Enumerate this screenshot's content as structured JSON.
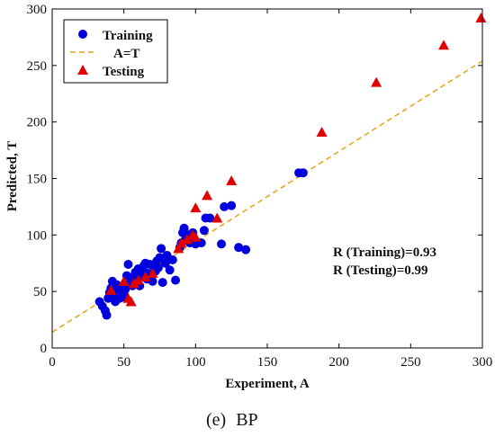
{
  "caption": {
    "letter": "(e)",
    "text": "BP"
  },
  "chart_data": {
    "type": "scatter",
    "title": "",
    "xlabel": "Experiment, A",
    "ylabel": "Predicted, T",
    "xlim": [
      0,
      300
    ],
    "ylim": [
      0,
      300
    ],
    "xticks": [
      0,
      50,
      100,
      150,
      200,
      250,
      300
    ],
    "yticks": [
      0,
      50,
      100,
      150,
      200,
      250,
      300
    ],
    "grid": false,
    "legend_position": "top-left",
    "colors": {
      "training": "#0000dd",
      "fit": "#e8a317",
      "testing": "#e00000"
    },
    "legend": [
      {
        "key": "training",
        "label": "Training",
        "marker": "circle"
      },
      {
        "key": "fit",
        "label": "A=T",
        "marker": "dashed-line"
      },
      {
        "key": "testing",
        "label": "Testing",
        "marker": "triangle"
      }
    ],
    "fit_line": {
      "x": [
        0,
        300
      ],
      "y": [
        14,
        254
      ]
    },
    "series": [
      {
        "key": "training",
        "name": "Training",
        "points": [
          [
            33,
            41
          ],
          [
            35,
            37
          ],
          [
            37,
            33
          ],
          [
            38,
            29
          ],
          [
            39,
            44
          ],
          [
            40,
            49
          ],
          [
            41,
            53
          ],
          [
            42,
            59
          ],
          [
            43,
            46
          ],
          [
            44,
            41
          ],
          [
            45,
            56
          ],
          [
            46,
            50
          ],
          [
            47,
            44
          ],
          [
            48,
            52
          ],
          [
            49,
            45
          ],
          [
            50,
            48
          ],
          [
            51,
            52
          ],
          [
            52,
            64
          ],
          [
            53,
            74
          ],
          [
            54,
            57
          ],
          [
            55,
            61
          ],
          [
            56,
            55
          ],
          [
            57,
            63
          ],
          [
            58,
            67
          ],
          [
            59,
            60
          ],
          [
            60,
            70
          ],
          [
            61,
            55
          ],
          [
            62,
            64
          ],
          [
            63,
            69
          ],
          [
            64,
            73
          ],
          [
            65,
            75
          ],
          [
            66,
            61
          ],
          [
            67,
            66
          ],
          [
            68,
            74
          ],
          [
            70,
            59
          ],
          [
            71,
            72
          ],
          [
            72,
            68
          ],
          [
            73,
            77
          ],
          [
            74,
            71
          ],
          [
            75,
            80
          ],
          [
            76,
            88
          ],
          [
            77,
            58
          ],
          [
            79,
            75
          ],
          [
            80,
            82
          ],
          [
            82,
            69
          ],
          [
            84,
            78
          ],
          [
            86,
            60
          ],
          [
            89,
            89
          ],
          [
            90,
            93
          ],
          [
            91,
            102
          ],
          [
            92,
            106
          ],
          [
            93,
            96
          ],
          [
            95,
            100
          ],
          [
            96,
            93
          ],
          [
            98,
            102
          ],
          [
            100,
            92
          ],
          [
            104,
            93
          ],
          [
            106,
            104
          ],
          [
            107,
            115
          ],
          [
            110,
            115
          ],
          [
            118,
            92
          ],
          [
            120,
            125
          ],
          [
            125,
            126
          ],
          [
            130,
            89
          ],
          [
            135,
            87
          ],
          [
            172,
            155
          ],
          [
            175,
            155
          ]
        ]
      },
      {
        "key": "testing",
        "name": "Testing",
        "points": [
          [
            41,
            51
          ],
          [
            50,
            59
          ],
          [
            53,
            44
          ],
          [
            55,
            41
          ],
          [
            57,
            57
          ],
          [
            60,
            60
          ],
          [
            65,
            63
          ],
          [
            70,
            66
          ],
          [
            88,
            88
          ],
          [
            90,
            93
          ],
          [
            94,
            96
          ],
          [
            98,
            100
          ],
          [
            100,
            98
          ],
          [
            100,
            124
          ],
          [
            108,
            135
          ],
          [
            115,
            115
          ],
          [
            125,
            148
          ],
          [
            188,
            191
          ],
          [
            226,
            235
          ],
          [
            273,
            268
          ],
          [
            299,
            292
          ]
        ]
      }
    ],
    "annotations": [
      "R (Training)=0.93",
      "R (Testing)=0.99"
    ]
  }
}
